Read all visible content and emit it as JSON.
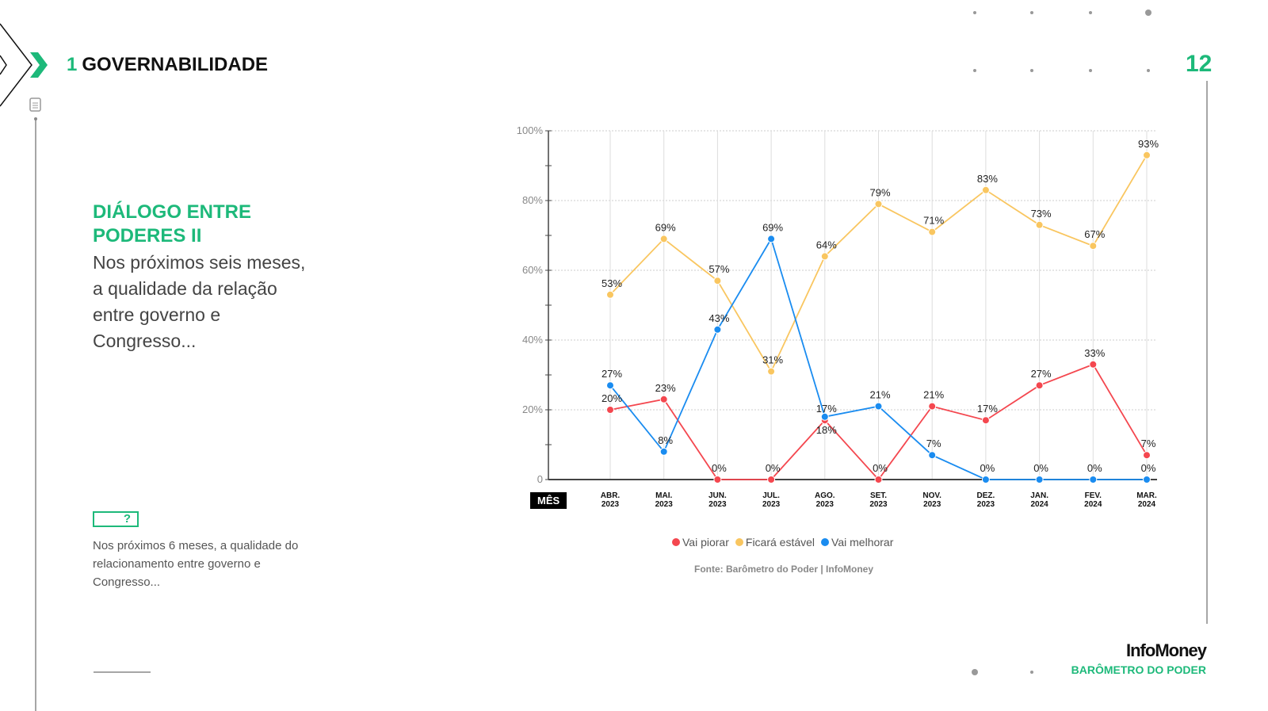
{
  "header": {
    "section_number": "1",
    "section_title": "GOVERNABILIDADE",
    "page_number": "12"
  },
  "left": {
    "heading": "DIÁLOGO ENTRE PODERES II",
    "question": "Nos próximos seis meses, a qualidade da relação entre governo e Congresso...",
    "note_icon": "?",
    "note": "Nos próximos 6 meses, a qualidade do relacionamento entre governo e Congresso..."
  },
  "brand": {
    "logo": "InfoMoney",
    "subtitle": "BARÔMETRO DO PODER"
  },
  "chart_data": {
    "type": "line",
    "xlabel": "MÊS",
    "categories": [
      [
        "ABR.",
        "2023"
      ],
      [
        "MAI.",
        "2023"
      ],
      [
        "JUN.",
        "2023"
      ],
      [
        "JUL.",
        "2023"
      ],
      [
        "AGO.",
        "2023"
      ],
      [
        "SET.",
        "2023"
      ],
      [
        "NOV.",
        "2023"
      ],
      [
        "DEZ.",
        "2023"
      ],
      [
        "JAN.",
        "2024"
      ],
      [
        "FEV.",
        "2024"
      ],
      [
        "MAR.",
        "2024"
      ]
    ],
    "yticks": [
      "0",
      "20%",
      "40%",
      "60%",
      "80%",
      "100%"
    ],
    "ylim": [
      0,
      100
    ],
    "series": [
      {
        "name": "Vai piorar",
        "color": "#f4474f",
        "values": [
          20,
          23,
          0,
          0,
          17,
          0,
          21,
          17,
          27,
          33,
          7
        ]
      },
      {
        "name": "Ficará estável",
        "color": "#f9c660",
        "values": [
          53,
          69,
          57,
          31,
          64,
          79,
          71,
          83,
          73,
          67,
          93
        ]
      },
      {
        "name": "Vai melhorar",
        "color": "#1a8cf0",
        "values": [
          27,
          8,
          43,
          69,
          18,
          21,
          7,
          0,
          0,
          0,
          0
        ]
      }
    ],
    "legend": "bottom",
    "source": "Fonte: Barômetro do Poder | InfoMoney"
  }
}
